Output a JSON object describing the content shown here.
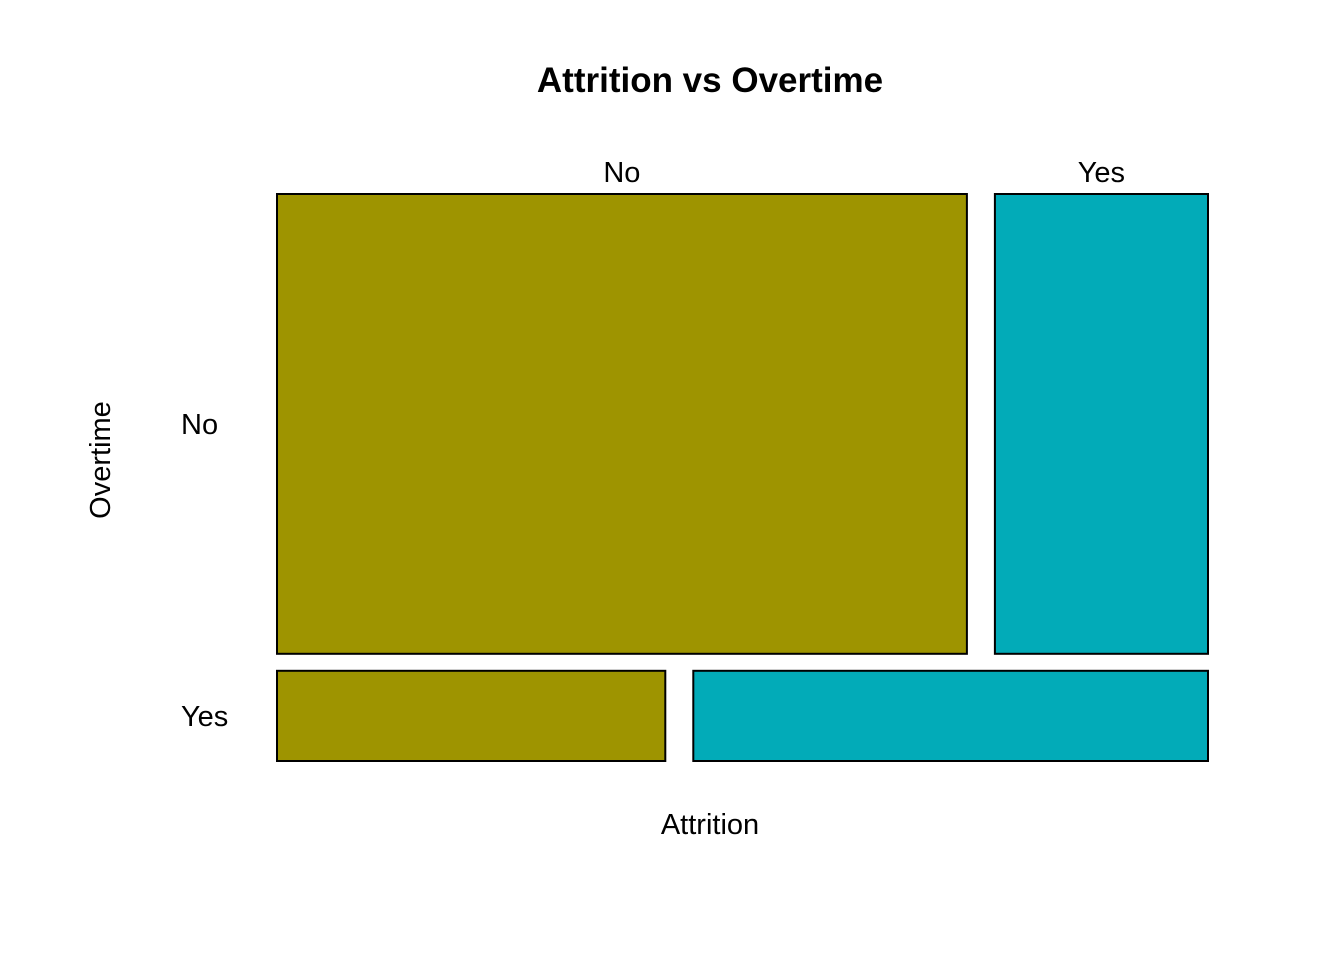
{
  "chart_data": {
    "type": "mosaic",
    "title": "Attrition vs Overtime",
    "xlabel": "Attrition",
    "ylabel": "Overtime",
    "rows": [
      "No",
      "Yes"
    ],
    "row_proportions": [
      0.836,
      0.164
    ],
    "columns": [
      "No",
      "Yes"
    ],
    "colors": {
      "No": "#9e9400",
      "Yes": "#02abb8"
    },
    "cells": [
      {
        "overtime": "No",
        "attrition": "No",
        "proportion_within_row": 0.764
      },
      {
        "overtime": "No",
        "attrition": "Yes",
        "proportion_within_row": 0.236
      },
      {
        "overtime": "Yes",
        "attrition": "No",
        "proportion_within_row": 0.43
      },
      {
        "overtime": "Yes",
        "attrition": "Yes",
        "proportion_within_row": 0.57
      }
    ],
    "legend": "none",
    "grid": false
  }
}
